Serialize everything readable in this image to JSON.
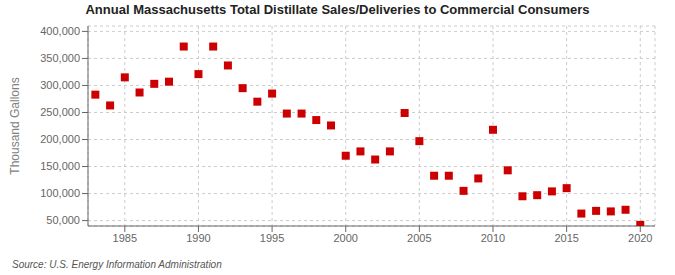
{
  "chart_data": {
    "type": "scatter",
    "title": "Annual Massachusetts Total Distillate Sales/Deliveries to Commercial Consumers",
    "ylabel": "Thousand Gallons",
    "annotation": "Source: U.S. Energy Information Administration",
    "x": [
      1983,
      1984,
      1985,
      1986,
      1987,
      1988,
      1989,
      1990,
      1991,
      1992,
      1993,
      1994,
      1995,
      1996,
      1997,
      1998,
      1999,
      2000,
      2001,
      2002,
      2003,
      2004,
      2005,
      2006,
      2007,
      2008,
      2009,
      2010,
      2011,
      2012,
      2013,
      2014,
      2015,
      2016,
      2017,
      2018,
      2019,
      2020
    ],
    "values": [
      283000,
      263000,
      315000,
      287000,
      303000,
      307000,
      372000,
      321000,
      372000,
      337000,
      295000,
      270000,
      285000,
      248000,
      248000,
      236000,
      226000,
      170000,
      178000,
      163000,
      178000,
      249000,
      197000,
      133000,
      133000,
      105000,
      128000,
      218000,
      143000,
      95000,
      97000,
      104000,
      110000,
      63000,
      68000,
      67000,
      70000,
      42000
    ],
    "color": "#cc0000",
    "marker": "square",
    "xlim": [
      1982.5,
      2021
    ],
    "xticks": [
      1985,
      1990,
      1995,
      2000,
      2005,
      2010,
      2015,
      2020
    ],
    "ylim": [
      40000,
      410000
    ],
    "yticks": [
      {
        "value": 50000,
        "label": "50,000"
      },
      {
        "value": 100000,
        "label": "100,000"
      },
      {
        "value": 150000,
        "label": "150,000"
      },
      {
        "value": 200000,
        "label": "200,000"
      },
      {
        "value": 250000,
        "label": "250,000"
      },
      {
        "value": 300000,
        "label": "300,000"
      },
      {
        "value": 350000,
        "label": "350,000"
      },
      {
        "value": 400000,
        "label": "400,000"
      }
    ],
    "grid": true
  }
}
